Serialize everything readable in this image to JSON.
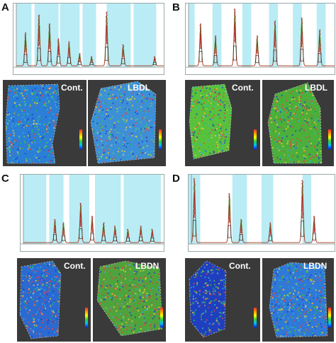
{
  "panels": [
    {
      "label": "A",
      "left_label": "Cont.",
      "right_label": "LBDL",
      "left_base": "#2b7fd6",
      "right_base": "#3d8fd8",
      "accent": "#6ad04a"
    },
    {
      "label": "B",
      "left_label": "Cont.",
      "right_label": "LBDL",
      "left_base": "#58c23c",
      "right_base": "#4caf3a",
      "accent": "#e0404f"
    },
    {
      "label": "C",
      "left_label": "Cont.",
      "right_label": "LBDN",
      "left_base": "#2a6ad3",
      "right_base": "#4fa33c",
      "accent": "#e04848"
    },
    {
      "label": "D",
      "left_label": "Cont.",
      "right_label": "LBDN",
      "left_base": "#1f3fbf",
      "right_base": "#2f79d8",
      "accent": "#56b83c"
    }
  ],
  "colors": {
    "highlight": "#b9ecf4",
    "green_line": "#2fc13a",
    "red_line": "#c52525",
    "dark_line": "#444444",
    "panel_bg": "#333333"
  }
}
